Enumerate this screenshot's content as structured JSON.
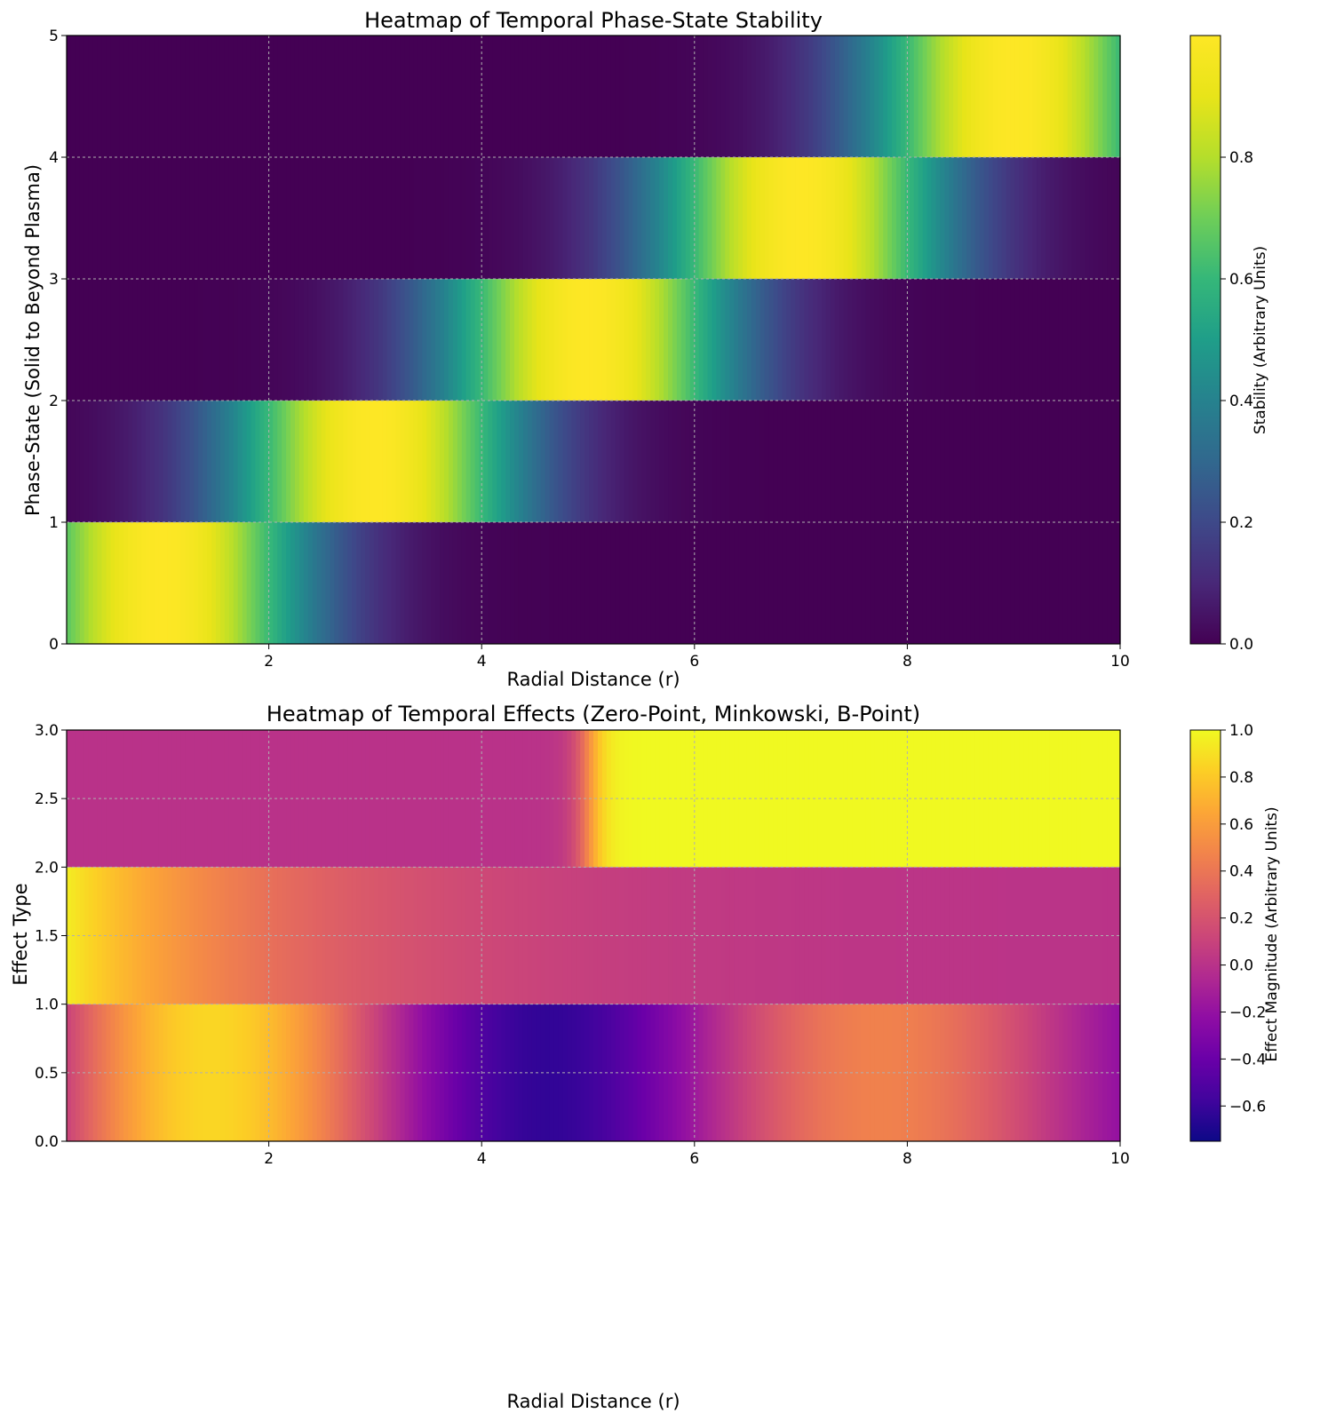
{
  "chart_data": [
    {
      "type": "heatmap",
      "title": "Heatmap of Temporal Phase-State Stability",
      "xlabel": "Radial Distance (r)",
      "ylabel": "Phase-State (Solid to Beyond Plasma)",
      "xlim": [
        0.1,
        10
      ],
      "ylim": [
        0,
        5
      ],
      "xticks": [
        2,
        4,
        6,
        8,
        10
      ],
      "yticks": [
        0,
        1,
        2,
        3,
        4,
        5
      ],
      "grid": true,
      "colormap": "viridis",
      "colorbar": {
        "label": "Stability (Arbitrary Units)",
        "range": [
          0,
          1
        ],
        "ticks": [
          "0.0",
          "0.2",
          "0.4",
          "0.6",
          "0.8"
        ]
      },
      "rows": [
        {
          "band": [
            0,
            1
          ],
          "peak_r": 1,
          "width": 1
        },
        {
          "band": [
            1,
            2
          ],
          "peak_r": 3,
          "width": 1
        },
        {
          "band": [
            2,
            3
          ],
          "peak_r": 5,
          "width": 1
        },
        {
          "band": [
            3,
            4
          ],
          "peak_r": 7,
          "width": 1
        },
        {
          "band": [
            4,
            5
          ],
          "peak_r": 9,
          "width": 1
        }
      ]
    },
    {
      "type": "heatmap",
      "title": "Heatmap of Temporal Effects (Zero-Point, Minkowski, B-Point)",
      "xlabel": "Radial Distance (r)",
      "ylabel": "Effect Type",
      "xlim": [
        0.1,
        10
      ],
      "ylim": [
        0,
        3
      ],
      "xticks": [
        2,
        4,
        6,
        8,
        10
      ],
      "yticks": [
        "0.0",
        "0.5",
        "1.0",
        "1.5",
        "2.0",
        "2.5",
        "3.0"
      ],
      "grid": true,
      "colormap": "plasma",
      "colorbar": {
        "label": "Effect Magnitude (Arbitrary Units)",
        "range": [
          -0.75,
          1.0
        ],
        "ticks": [
          "−0.6",
          "−0.4",
          "−0.2",
          "0.0",
          "0.2",
          "0.4",
          "0.6",
          "0.8",
          "1.0"
        ]
      },
      "rows": [
        {
          "band": [
            0,
            1
          ],
          "function": "sin(r)*exp(-r/10)"
        },
        {
          "band": [
            1,
            2
          ],
          "function": "exp(-r/2)"
        },
        {
          "band": [
            2,
            3
          ],
          "function": "step at r=5"
        }
      ]
    }
  ]
}
